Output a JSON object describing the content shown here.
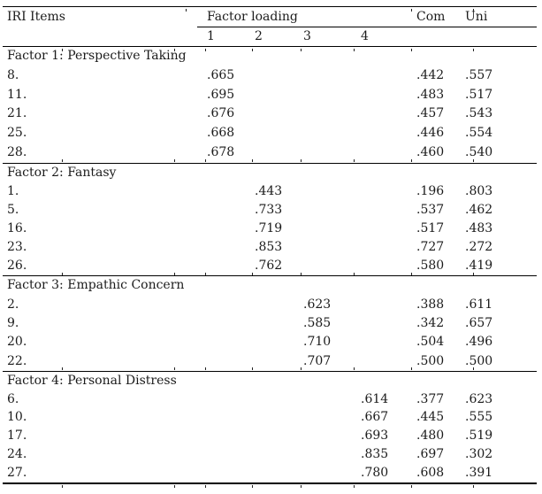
{
  "table": {
    "header": {
      "items_label": "IRI Items",
      "factor_loading_label": "Factor loading",
      "factor_columns": [
        "1",
        "2",
        "3",
        "4"
      ],
      "com_label": "Com",
      "uni_label": "Uni"
    },
    "sections": [
      {
        "label": "Factor 1: Perspective Taking",
        "factor_column": 1,
        "rows": [
          {
            "item": "8.",
            "loading": ".665",
            "com": ".442",
            "uni": ".557"
          },
          {
            "item": "11.",
            "loading": ".695",
            "com": ".483",
            "uni": ".517"
          },
          {
            "item": "21.",
            "loading": ".676",
            "com": ".457",
            "uni": ".543"
          },
          {
            "item": "25.",
            "loading": ".668",
            "com": ".446",
            "uni": ".554"
          },
          {
            "item": "28.",
            "loading": ".678",
            "com": ".460",
            "uni": ".540"
          }
        ]
      },
      {
        "label": "Factor 2: Fantasy",
        "factor_column": 2,
        "rows": [
          {
            "item": "1.",
            "loading": ".443",
            "com": ".196",
            "uni": ".803"
          },
          {
            "item": "5.",
            "loading": ".733",
            "com": ".537",
            "uni": ".462"
          },
          {
            "item": "16.",
            "loading": ".719",
            "com": ".517",
            "uni": ".483"
          },
          {
            "item": "23.",
            "loading": ".853",
            "com": ".727",
            "uni": ".272"
          },
          {
            "item": "26.",
            "loading": ".762",
            "com": ".580",
            "uni": ".419"
          }
        ]
      },
      {
        "label": "Factor 3: Empathic Concern",
        "factor_column": 3,
        "rows": [
          {
            "item": "2.",
            "loading": ".623",
            "com": ".388",
            "uni": ".611"
          },
          {
            "item": "9.",
            "loading": ".585",
            "com": ".342",
            "uni": ".657"
          },
          {
            "item": "20.",
            "loading": ".710",
            "com": ".504",
            "uni": ".496"
          },
          {
            "item": "22.",
            "loading": ".707",
            "com": ".500",
            "uni": ".500"
          }
        ]
      },
      {
        "label": "Factor 4: Personal Distress",
        "factor_column": 4,
        "rows": [
          {
            "item": "6.",
            "loading": ".614",
            "com": ".377",
            "uni": ".623"
          },
          {
            "item": "10.",
            "loading": ".667",
            "com": ".445",
            "uni": ".555"
          },
          {
            "item": "17.",
            "loading": ".693",
            "com": ".480",
            "uni": ".519"
          },
          {
            "item": "24.",
            "loading": ".835",
            "com": ".697",
            "uni": ".302"
          },
          {
            "item": "27.",
            "loading": ".780",
            "com": ".608",
            "uni": ".391"
          }
        ]
      }
    ]
  },
  "colors": {
    "text": "#1b1b1b",
    "rule": "#000000"
  }
}
